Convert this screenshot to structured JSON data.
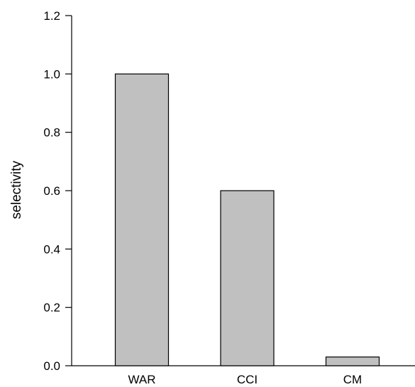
{
  "chart_data": {
    "type": "bar",
    "categories": [
      "WAR",
      "CCI",
      "CM"
    ],
    "values": [
      1.0,
      0.6,
      0.03
    ],
    "title": "",
    "xlabel": "",
    "ylabel": "selectivity",
    "ylim": [
      0,
      1.2
    ],
    "yticks": [
      "0.0",
      "0.2",
      "0.4",
      "0.6",
      "0.8",
      "1.0",
      "1.2"
    ],
    "grid": false,
    "colors": {
      "bar_fill": "#c0c0c0",
      "bar_stroke": "#000000",
      "axis": "#000000"
    }
  }
}
